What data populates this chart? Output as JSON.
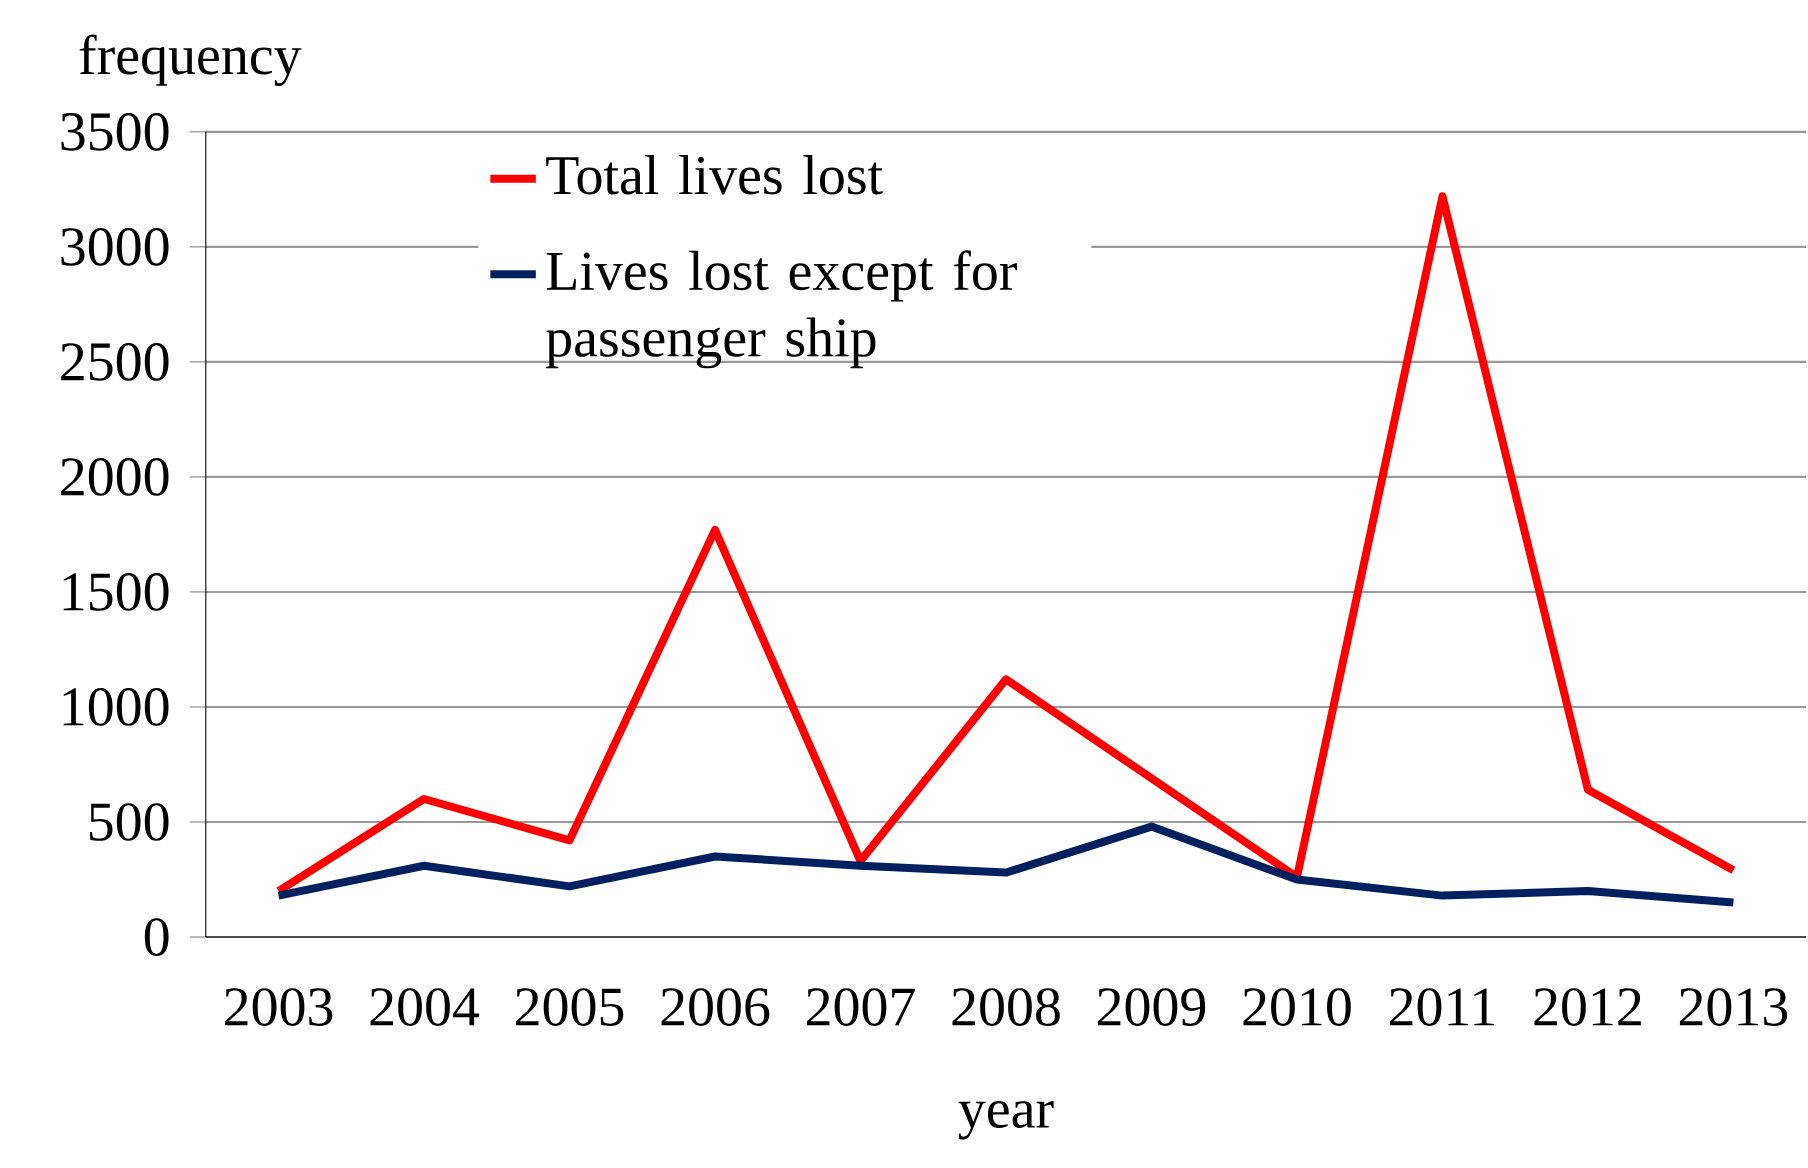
{
  "chart_data": {
    "type": "line",
    "xlabel": "year",
    "ylabel": "frequency",
    "categories": [
      "2003",
      "2004",
      "2005",
      "2006",
      "2007",
      "2008",
      "2009",
      "2010",
      "2011",
      "2012",
      "2013"
    ],
    "series": [
      {
        "name": "Total lives lost",
        "color": "#ff0000",
        "values": [
          200,
          600,
          420,
          1770,
          330,
          1120,
          690,
          260,
          3220,
          640,
          290
        ]
      },
      {
        "name": "Lives lost except for passenger ship",
        "color": "#002060",
        "values": [
          180,
          310,
          220,
          350,
          310,
          280,
          480,
          250,
          180,
          200,
          150
        ]
      }
    ],
    "ylim": [
      0,
      3500
    ],
    "yticks": [
      0,
      500,
      1000,
      1500,
      2000,
      2500,
      3000,
      3500
    ],
    "grid": "y",
    "legend": "top left",
    "marker": "none",
    "line_style": "solid"
  }
}
